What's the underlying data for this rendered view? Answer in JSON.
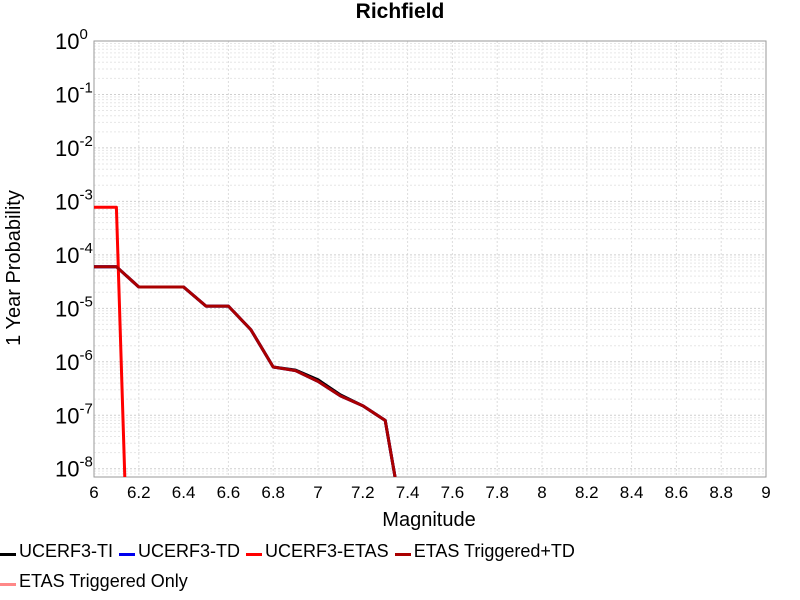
{
  "chart_data": {
    "type": "line",
    "title": "Richfield",
    "xlabel": "Magnitude",
    "ylabel": "1 Year Probability",
    "xlim": [
      6,
      9
    ],
    "ylim": [
      7e-09,
      1
    ],
    "yscale": "log",
    "grid": true,
    "x_ticks": [
      "6",
      "6.2",
      "6.4",
      "6.6",
      "6.8",
      "7",
      "7.2",
      "7.4",
      "7.6",
      "7.8",
      "8",
      "8.2",
      "8.4",
      "8.6",
      "8.8",
      "9"
    ],
    "y_ticks": [
      {
        "base": "10",
        "exp": "0",
        "value": 1
      },
      {
        "base": "10",
        "exp": "-1",
        "value": 0.1
      },
      {
        "base": "10",
        "exp": "-2",
        "value": 0.01
      },
      {
        "base": "10",
        "exp": "-3",
        "value": 0.001
      },
      {
        "base": "10",
        "exp": "-4",
        "value": 0.0001
      },
      {
        "base": "10",
        "exp": "-5",
        "value": 1e-05
      },
      {
        "base": "10",
        "exp": "-6",
        "value": 1e-06
      },
      {
        "base": "10",
        "exp": "-7",
        "value": 1e-07
      },
      {
        "base": "10",
        "exp": "-8",
        "value": 1e-08
      }
    ],
    "legend_position": "bottom",
    "series": [
      {
        "name": "UCERF3-TI",
        "color": "#000000",
        "x": [
          6.0,
          6.1,
          6.2,
          6.3,
          6.4,
          6.5,
          6.6,
          6.7,
          6.8,
          6.9,
          7.0,
          7.1,
          7.2,
          7.3,
          7.35
        ],
        "y": [
          6e-05,
          6e-05,
          2.5e-05,
          2.5e-05,
          2.5e-05,
          1.1e-05,
          1.1e-05,
          4e-06,
          8e-07,
          7e-07,
          4.6e-07,
          2.4e-07,
          1.5e-07,
          8e-08,
          5e-09
        ]
      },
      {
        "name": "UCERF3-TD",
        "color": "#0000ee",
        "x": [
          6.0,
          6.1,
          6.2,
          6.3,
          6.4,
          6.5,
          6.6,
          6.7,
          6.8,
          6.9,
          7.0,
          7.1,
          7.2,
          7.3,
          7.35
        ],
        "y": [
          6e-05,
          6e-05,
          2.5e-05,
          2.5e-05,
          2.5e-05,
          1.1e-05,
          1.1e-05,
          4e-06,
          8e-07,
          6.8e-07,
          4.3e-07,
          2.3e-07,
          1.5e-07,
          8e-08,
          5e-09
        ]
      },
      {
        "name": "UCERF3-ETAS",
        "color": "#ff0000",
        "x": [
          6.0,
          6.1,
          6.14
        ],
        "y": [
          0.00078,
          0.00078,
          3e-09
        ]
      },
      {
        "name": "ETAS Triggered+TD",
        "color": "#aa0000",
        "x": [
          6.0,
          6.1,
          6.2,
          6.3,
          6.4,
          6.5,
          6.6,
          6.7,
          6.8,
          6.9,
          7.0,
          7.1,
          7.2,
          7.3,
          7.35
        ],
        "y": [
          6e-05,
          6e-05,
          2.5e-05,
          2.5e-05,
          2.5e-05,
          1.1e-05,
          1.1e-05,
          4e-06,
          8e-07,
          6.8e-07,
          4.3e-07,
          2.3e-07,
          1.5e-07,
          8e-08,
          5e-09
        ]
      },
      {
        "name": "ETAS Triggered Only",
        "color": "#ff8888",
        "x": [],
        "y": []
      }
    ]
  }
}
